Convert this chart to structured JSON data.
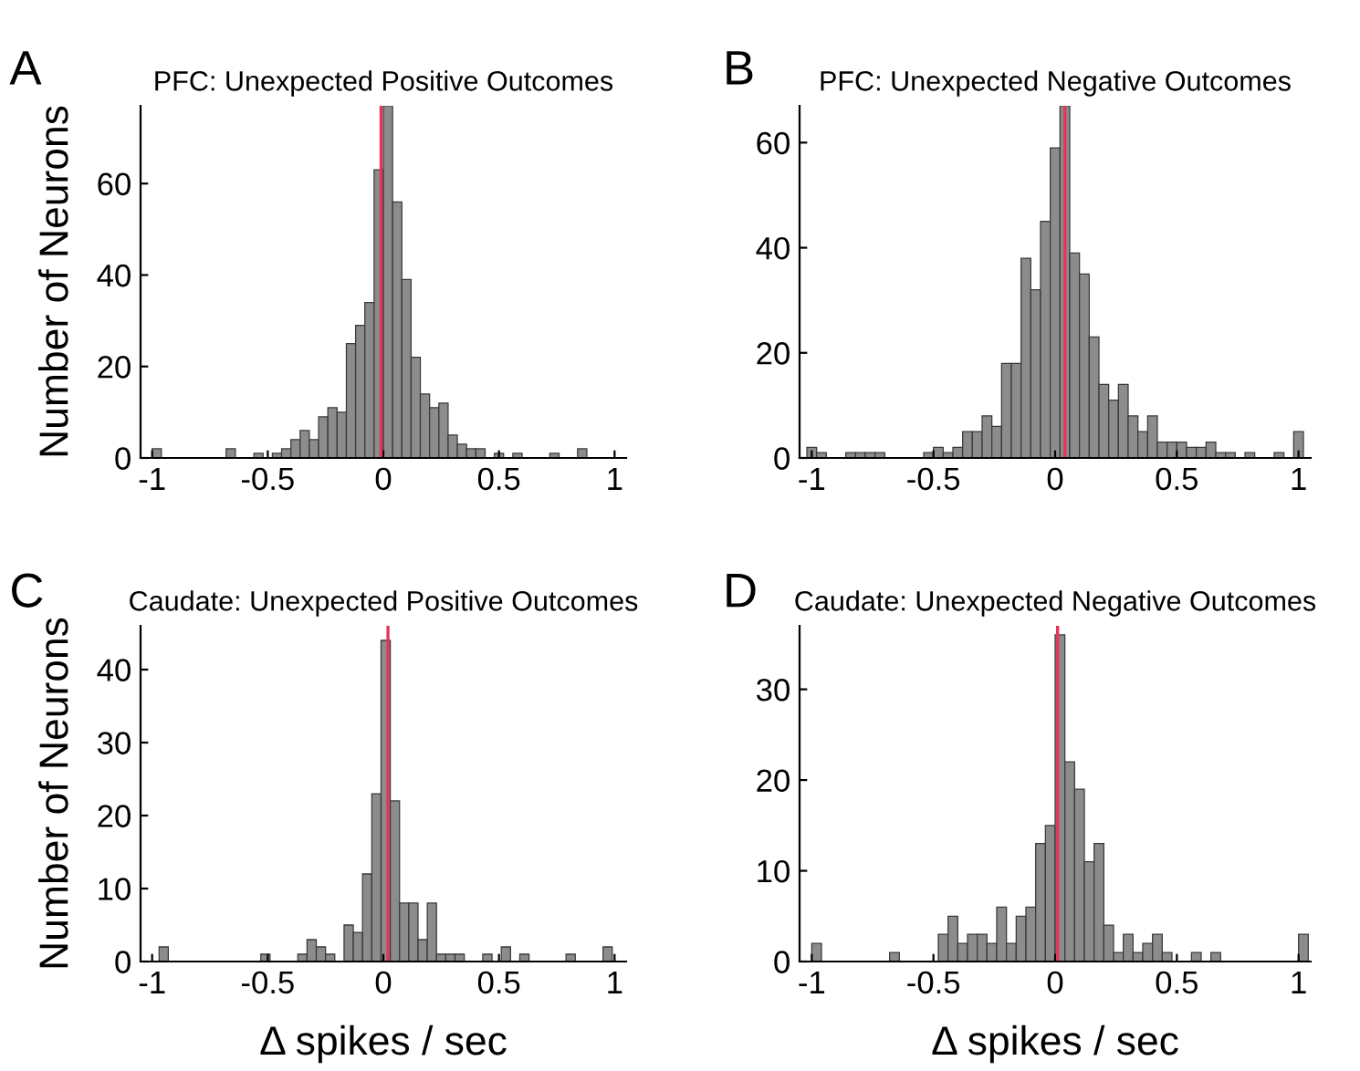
{
  "chart_data": [
    {
      "type": "histogram",
      "title": "PFC: Unexpected Positive Outcomes",
      "ylabel": "Number of Neurons",
      "annotations": [
        "A"
      ],
      "color": "#8c8c8c",
      "bins": [
        -1.0,
        -0.96,
        -0.92,
        -0.88,
        -0.84,
        -0.8,
        -0.76,
        -0.72,
        -0.68,
        -0.64,
        -0.6,
        -0.56,
        -0.52,
        -0.48,
        -0.44,
        -0.4,
        -0.36,
        -0.32,
        -0.28,
        -0.24,
        -0.2,
        -0.16,
        -0.12,
        -0.08,
        -0.04,
        0.0,
        0.04,
        0.08,
        0.12,
        0.16,
        0.2,
        0.24,
        0.28,
        0.32,
        0.36,
        0.4,
        0.44,
        0.48,
        0.52,
        0.56,
        0.6,
        0.64,
        0.68,
        0.72,
        0.76,
        0.8,
        0.84,
        0.88,
        0.92,
        0.96,
        1.0
      ],
      "values": [
        2,
        0,
        0,
        0,
        0,
        0,
        0,
        0,
        2,
        0,
        0,
        1,
        0,
        1,
        2,
        4,
        6,
        4,
        9,
        11,
        10,
        25,
        29,
        34,
        63,
        77,
        56,
        39,
        22,
        14,
        11,
        12,
        5,
        3,
        2,
        2,
        0,
        1,
        0,
        1,
        0,
        0,
        0,
        1,
        0,
        0,
        2,
        0,
        0,
        0
      ],
      "xlim": [
        -1.05,
        1.05
      ],
      "ylim": [
        0,
        77
      ],
      "xticks": [
        -1,
        -0.5,
        0,
        0.5,
        1
      ],
      "yticks": [
        0,
        20,
        40,
        60
      ],
      "ref_lines": [
        {
          "axis": "x",
          "value": -0.01,
          "color": "#e8335a"
        }
      ]
    },
    {
      "type": "histogram",
      "title": "PFC: Unexpected Negative Outcomes",
      "annotations": [
        "B"
      ],
      "color": "#8c8c8c",
      "bins": [
        -1.02,
        -0.98,
        -0.94,
        -0.9,
        -0.86,
        -0.82,
        -0.78,
        -0.74,
        -0.7,
        -0.66,
        -0.62,
        -0.58,
        -0.54,
        -0.5,
        -0.46,
        -0.42,
        -0.38,
        -0.34,
        -0.3,
        -0.26,
        -0.22,
        -0.18,
        -0.14,
        -0.1,
        -0.06,
        -0.02,
        0.02,
        0.06,
        0.1,
        0.14,
        0.18,
        0.22,
        0.26,
        0.3,
        0.34,
        0.38,
        0.42,
        0.46,
        0.5,
        0.54,
        0.58,
        0.62,
        0.66,
        0.7,
        0.74,
        0.78,
        0.82,
        0.86,
        0.9,
        0.94,
        0.98,
        1.02
      ],
      "values": [
        2,
        1,
        0,
        0,
        1,
        1,
        1,
        1,
        0,
        0,
        0,
        0,
        1,
        2,
        1,
        2,
        5,
        5,
        8,
        6,
        18,
        18,
        38,
        32,
        45,
        59,
        67,
        39,
        35,
        23,
        14,
        11,
        14,
        8,
        5,
        8,
        3,
        3,
        3,
        2,
        2,
        3,
        1,
        1,
        0,
        1,
        0,
        0,
        1,
        0,
        5
      ],
      "xlim": [
        -1.05,
        1.05
      ],
      "ylim": [
        0,
        67
      ],
      "xticks": [
        -1,
        -0.5,
        0,
        0.5,
        1
      ],
      "yticks": [
        0,
        20,
        40,
        60
      ],
      "ref_lines": [
        {
          "axis": "x",
          "value": 0.04,
          "color": "#e8335a"
        }
      ]
    },
    {
      "type": "histogram",
      "title": "Caudate: Unexpected Positive Outcomes",
      "ylabel": "Number of Neurons",
      "xlabel": "Δ spikes / sec",
      "annotations": [
        "C"
      ],
      "color": "#8c8c8c",
      "bins": [
        -0.97,
        -0.93,
        -0.89,
        -0.85,
        -0.81,
        -0.77,
        -0.73,
        -0.69,
        -0.65,
        -0.61,
        -0.57,
        -0.53,
        -0.49,
        -0.45,
        -0.41,
        -0.37,
        -0.33,
        -0.29,
        -0.25,
        -0.21,
        -0.17,
        -0.13,
        -0.09,
        -0.05,
        -0.01,
        0.03,
        0.07,
        0.11,
        0.15,
        0.19,
        0.23,
        0.27,
        0.31,
        0.35,
        0.39,
        0.43,
        0.47,
        0.51,
        0.55,
        0.59,
        0.63,
        0.67,
        0.71,
        0.75,
        0.79,
        0.83,
        0.87,
        0.91,
        0.95,
        0.99
      ],
      "values": [
        2,
        0,
        0,
        0,
        0,
        0,
        0,
        0,
        0,
        0,
        0,
        1,
        0,
        0,
        0,
        1,
        3,
        2,
        1,
        0,
        5,
        4,
        12,
        23,
        44,
        22,
        8,
        8,
        3,
        8,
        1,
        1,
        1,
        0,
        0,
        1,
        0,
        2,
        0,
        1,
        0,
        0,
        0,
        0,
        1,
        0,
        0,
        0,
        2
      ],
      "xlim": [
        -1.05,
        1.05
      ],
      "ylim": [
        0,
        46
      ],
      "xticks": [
        -1,
        -0.5,
        0,
        0.5,
        1
      ],
      "yticks": [
        0,
        10,
        20,
        30,
        40
      ],
      "ref_lines": [
        {
          "axis": "x",
          "value": 0.02,
          "color": "#e8335a"
        }
      ]
    },
    {
      "type": "histogram",
      "title": "Caudate: Unexpected Negative Outcomes",
      "xlabel": "Δ spikes / sec",
      "annotations": [
        "D"
      ],
      "color": "#8c8c8c",
      "bins": [
        -1.0,
        -0.96,
        -0.92,
        -0.88,
        -0.84,
        -0.8,
        -0.76,
        -0.72,
        -0.68,
        -0.64,
        -0.6,
        -0.56,
        -0.52,
        -0.48,
        -0.44,
        -0.4,
        -0.36,
        -0.32,
        -0.28,
        -0.24,
        -0.2,
        -0.16,
        -0.12,
        -0.08,
        -0.04,
        0.0,
        0.04,
        0.08,
        0.12,
        0.16,
        0.2,
        0.24,
        0.28,
        0.32,
        0.36,
        0.4,
        0.44,
        0.48,
        0.52,
        0.56,
        0.6,
        0.64,
        0.68,
        0.72,
        0.76,
        0.8,
        0.84,
        0.88,
        0.92,
        0.96,
        1.0,
        1.04
      ],
      "values": [
        2,
        0,
        0,
        0,
        0,
        0,
        0,
        0,
        1,
        0,
        0,
        0,
        0,
        3,
        5,
        2,
        3,
        3,
        2,
        6,
        2,
        5,
        6,
        13,
        15,
        36,
        22,
        19,
        11,
        13,
        4,
        1,
        3,
        1,
        2,
        3,
        1,
        0,
        0,
        1,
        0,
        1,
        0,
        0,
        0,
        0,
        0,
        0,
        0,
        0,
        3
      ],
      "xlim": [
        -1.05,
        1.05
      ],
      "ylim": [
        0,
        37
      ],
      "xticks": [
        -1,
        -0.5,
        0,
        0.5,
        1
      ],
      "yticks": [
        0,
        10,
        20,
        30
      ],
      "ref_lines": [
        {
          "axis": "x",
          "value": 0.01,
          "color": "#e8335a"
        }
      ]
    }
  ]
}
